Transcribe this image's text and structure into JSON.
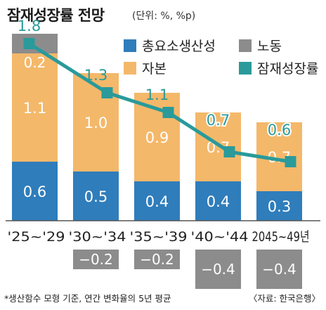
{
  "header": {
    "title": "잠재성장률 전망",
    "unit": "(단위: %, %p)"
  },
  "footer": {
    "note": "*생산함수 모형 기준, 연간 변화율의 5년 평균",
    "source": "〈자료: 한국은행〉"
  },
  "colors": {
    "tfp": "#2f7dbb",
    "capital": "#f4b86a",
    "labor": "#8c8c8c",
    "potential": "#2a9a9a",
    "negative_label": "#ffffff"
  },
  "chart_data": {
    "type": "bar",
    "stacked": true,
    "categories": [
      "'25~'29",
      "'30~'34",
      "'35~'39",
      "'40~'44",
      "2045~49년"
    ],
    "series": [
      {
        "name": "총요소생산성",
        "kind": "bar",
        "values": [
          0.6,
          0.5,
          0.4,
          0.4,
          0.3
        ],
        "value_labels": [
          "0.6",
          "0.5",
          "0.4",
          "0.4",
          "0.3"
        ]
      },
      {
        "name": "자본",
        "kind": "bar",
        "values": [
          1.1,
          1.0,
          0.9,
          0.7,
          0.7
        ],
        "value_labels": [
          "1.1",
          "1.0",
          "0.9",
          "0.7",
          "0.7"
        ]
      },
      {
        "name": "노동",
        "kind": "bar",
        "values": [
          0.2,
          -0.2,
          -0.2,
          -0.4,
          -0.4
        ],
        "value_labels": [
          "0.2",
          "−0.2",
          "−0.2",
          "−0.4",
          "−0.4"
        ]
      },
      {
        "name": "잠재성장률",
        "kind": "line",
        "values": [
          1.8,
          1.3,
          1.1,
          0.7,
          0.6
        ],
        "value_labels": [
          "1.8",
          "1.3",
          "1.1",
          "0.7",
          "0.6"
        ]
      }
    ],
    "legend_placement": "top-right",
    "grid": false
  }
}
